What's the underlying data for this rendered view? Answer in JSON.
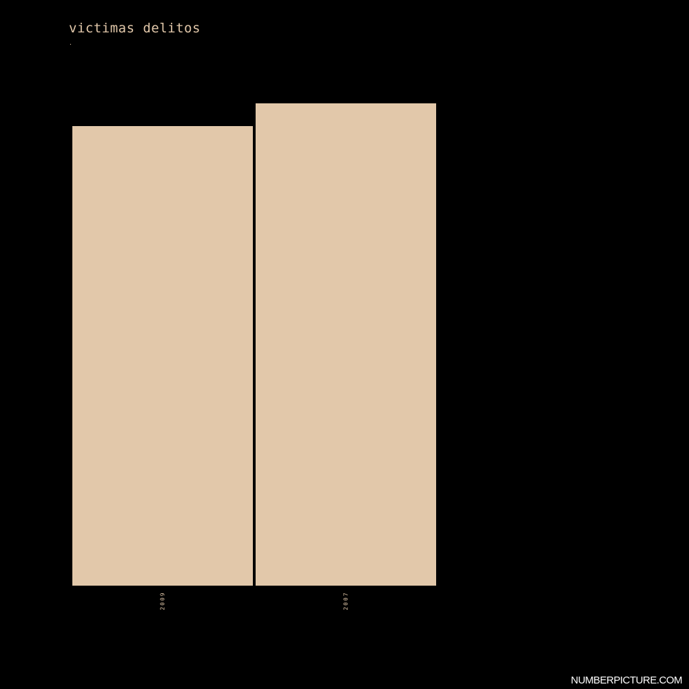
{
  "chart_data": {
    "type": "bar",
    "title": "victimas delitos",
    "subtitle": ".",
    "categories": [
      "2009",
      "2007"
    ],
    "values": [
      667,
      700
    ],
    "ylim": [
      0,
      700
    ],
    "xlabel": "",
    "ylabel": "",
    "grid": false,
    "bar_color": "#e2c8aa",
    "label_color": "#e2c8aa",
    "background": "#000000"
  },
  "footer": {
    "brand": "NUMBERPICTURE.COM"
  }
}
